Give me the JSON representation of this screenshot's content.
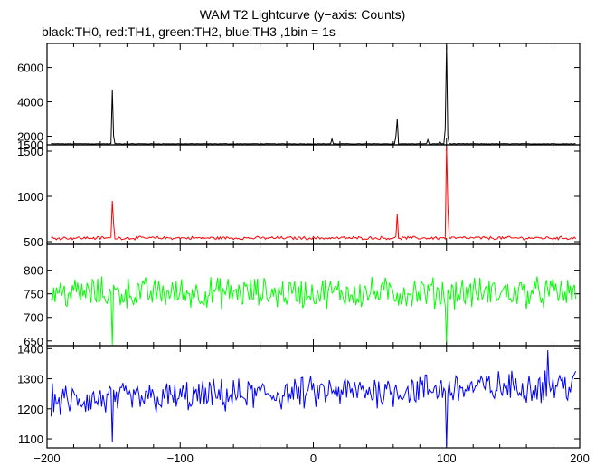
{
  "title": "WAM T2 Lightcurve (y−axis: Counts)",
  "subtitle": "black:TH0, red:TH1, green:TH2, blue:TH3 ,1bin = 1s",
  "chart_data": {
    "type": "line",
    "title": "WAM T2 Lightcurve (y−axis: Counts)",
    "subtitle": "black:TH0, red:TH1, green:TH2, blue:TH3 ,1bin = 1s",
    "xlim": [
      -200,
      200
    ],
    "x_ticks": [
      -200,
      -100,
      0,
      100,
      200
    ],
    "x_tick_labels": [
      "−200",
      "−100",
      "0",
      "100",
      "200"
    ],
    "x_range_data": [
      -197,
      197
    ],
    "panels": [
      {
        "series": "TH0",
        "color": "#000000",
        "ylim": [
          1500,
          7400
        ],
        "y_ticks": [
          1500,
          2000,
          4000,
          6000
        ],
        "y_tick_labels": [
          "1500",
          "2000",
          "4000",
          "6000"
        ],
        "baseline": 1560,
        "noise": 25,
        "spikes": [
          {
            "x": -151,
            "y": 4700
          },
          {
            "x": -150,
            "y": 2000
          },
          {
            "x": 14,
            "y": 1850
          },
          {
            "x": 62,
            "y": 2000
          },
          {
            "x": 63,
            "y": 3000
          },
          {
            "x": 86,
            "y": 1800
          },
          {
            "x": 95,
            "y": 1700
          },
          {
            "x": 99,
            "y": 2400
          },
          {
            "x": 100,
            "y": 7300
          },
          {
            "x": 101,
            "y": 2000
          }
        ]
      },
      {
        "series": "TH1",
        "color": "#ff0000",
        "ylim": [
          470,
          1570
        ],
        "y_ticks": [
          500,
          1000,
          1500
        ],
        "y_tick_labels": [
          "500",
          "1000",
          "1500"
        ],
        "baseline": 540,
        "noise": 30,
        "spikes": [
          {
            "x": -151,
            "y": 950
          },
          {
            "x": -150,
            "y": 700
          },
          {
            "x": 63,
            "y": 800
          },
          {
            "x": 100,
            "y": 1550
          },
          {
            "x": 101,
            "y": 900
          }
        ]
      },
      {
        "series": "TH2",
        "color": "#00ff00",
        "ylim": [
          640,
          855
        ],
        "y_ticks": [
          650,
          700,
          750,
          800
        ],
        "y_tick_labels": [
          "650",
          "700",
          "750",
          "800"
        ],
        "baseline": 752,
        "noise": 55,
        "spikes": [
          {
            "x": -151,
            "y": 642
          },
          {
            "x": 100,
            "y": 648
          }
        ]
      },
      {
        "series": "TH3",
        "color": "#0000ff",
        "ylim": [
          1070,
          1410
        ],
        "y_ticks": [
          1100,
          1200,
          1300,
          1400
        ],
        "y_tick_labels": [
          "1100",
          "1200",
          "1300",
          "1400"
        ],
        "baseline": 1225,
        "trend": 0.14,
        "noise": 90,
        "spikes": [
          {
            "x": -151,
            "y": 1090
          },
          {
            "x": 100,
            "y": 1075
          },
          {
            "x": 176,
            "y": 1395
          }
        ]
      }
    ]
  }
}
